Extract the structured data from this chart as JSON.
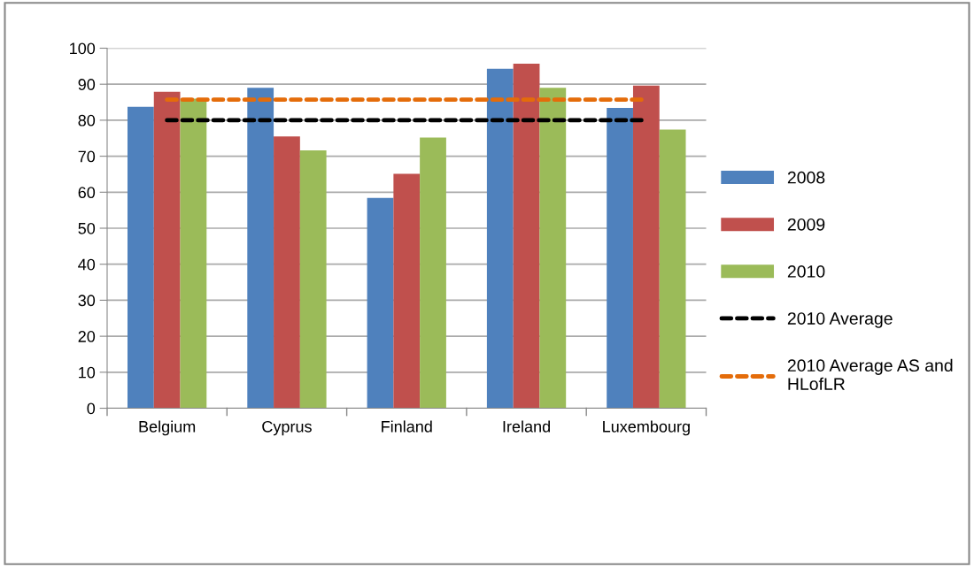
{
  "chart_data": {
    "type": "bar",
    "categories": [
      "Belgium",
      "Cyprus",
      "Finland",
      "Ireland",
      "Luxembourg"
    ],
    "series": [
      {
        "name": "2008",
        "color": "#4f81bd",
        "values": [
          83.7,
          89.0,
          58.4,
          94.3,
          83.4
        ]
      },
      {
        "name": "2009",
        "color": "#c0504d",
        "values": [
          87.9,
          75.5,
          65.1,
          95.7,
          89.6
        ]
      },
      {
        "name": "2010",
        "color": "#9bbb59",
        "values": [
          86.0,
          71.6,
          75.2,
          89.0,
          77.4
        ]
      },
      {
        "name": "2010 Average",
        "type": "line",
        "color": "#000000",
        "line_style": "dashed",
        "values": [
          80,
          80,
          80,
          80,
          80
        ]
      },
      {
        "name": "2010 Average AS and HLofLR",
        "type": "line",
        "color": "#e46c0a",
        "line_style": "dashed",
        "values": [
          85.7,
          85.7,
          85.7,
          85.7,
          85.7
        ]
      }
    ],
    "ylim": [
      0,
      100
    ],
    "yticks": [
      0,
      10,
      20,
      30,
      40,
      50,
      60,
      70,
      80,
      90,
      100
    ],
    "grid": "y",
    "legend": "right"
  }
}
